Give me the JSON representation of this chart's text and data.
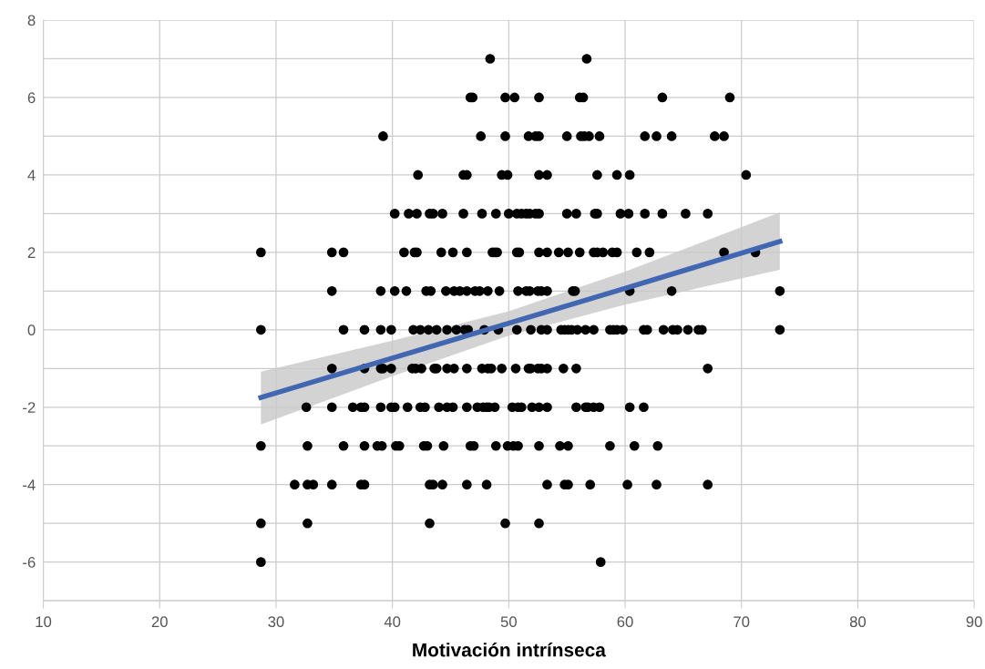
{
  "chart_data": {
    "type": "scatter",
    "xlabel": "Motivación intrínseca",
    "xlim": [
      10,
      90
    ],
    "xticks": [
      10,
      20,
      30,
      40,
      50,
      60,
      70,
      80,
      90
    ],
    "ylim": [
      -7,
      8
    ],
    "yticks": [
      {
        "value": -7,
        "label": null
      },
      -6,
      {
        "value": -5,
        "label": null
      },
      -4,
      {
        "value": -3,
        "label": null
      },
      -2,
      {
        "value": -1,
        "label": null
      },
      0,
      {
        "value": 1,
        "label": null
      },
      2,
      {
        "value": 3,
        "label": null
      },
      4,
      {
        "value": 5,
        "label": null
      },
      6,
      {
        "value": 7,
        "label": null
      },
      8
    ],
    "grid": true,
    "marker": "circle",
    "series": [
      {
        "color": "#000000",
        "x": [
          48.4,
          56.7,
          46.7,
          46.9,
          49.7,
          50.5,
          52.6,
          56.1,
          56.4,
          63.2,
          69.0,
          39.2,
          47.6,
          49.7,
          51.7,
          52.3,
          52.6,
          55.0,
          56.2,
          56.5,
          56.9,
          57.8,
          61.7,
          62.7,
          64.0,
          67.7,
          68.5,
          42.2,
          46.1,
          46.4,
          49.4,
          49.9,
          52.6,
          53.3,
          57.6,
          59.3,
          60.4,
          70.4,
          40.2,
          41.4,
          42.1,
          43.2,
          43.5,
          44.3,
          46.1,
          47.7,
          48.9,
          50.0,
          50.7,
          51.1,
          51.5,
          51.8,
          52.3,
          52.6,
          55.0,
          55.8,
          57.4,
          57.6,
          59.6,
          60.3,
          61.7,
          63.2,
          65.2,
          67.1,
          28.7,
          34.8,
          35.8,
          41.0,
          41.9,
          42.1,
          44.2,
          45.2,
          46.4,
          48.6,
          48.8,
          49.0,
          50.7,
          50.9,
          52.6,
          53.3,
          54.3,
          55.1,
          56.1,
          57.3,
          57.6,
          58.1,
          58.9,
          59.3,
          61.0,
          62.1,
          68.5,
          71.2,
          34.8,
          39.0,
          40.2,
          41.2,
          42.9,
          43.3,
          44.6,
          45.3,
          45.8,
          46.4,
          47.1,
          47.5,
          48.2,
          49.2,
          50.8,
          51.5,
          51.8,
          52.5,
          52.8,
          53.3,
          55.5,
          55.7,
          60.4,
          64.0,
          73.3,
          28.7,
          35.8,
          37.6,
          39.0,
          39.9,
          41.8,
          42.4,
          43.1,
          43.8,
          44.7,
          45.5,
          46.2,
          46.5,
          47.9,
          49.1,
          50.7,
          51.9,
          52.8,
          53.3,
          54.5,
          54.8,
          55.1,
          55.4,
          55.9,
          56.6,
          57.3,
          58.7,
          59.0,
          59.3,
          59.8,
          61.6,
          61.9,
          63.3,
          64.1,
          64.5,
          65.4,
          66.3,
          66.6,
          73.3,
          34.8,
          37.6,
          39.0,
          39.2,
          39.9,
          41.7,
          42.0,
          42.5,
          43.6,
          43.8,
          44.7,
          45.3,
          46.4,
          47.7,
          48.2,
          48.5,
          49.4,
          50.6,
          51.7,
          51.9,
          52.5,
          52.8,
          53.3,
          54.7,
          55.8,
          67.1,
          32.6,
          34.8,
          36.6,
          37.3,
          37.6,
          39.0,
          39.9,
          40.2,
          41.3,
          42.4,
          42.8,
          44.0,
          44.7,
          45.2,
          46.4,
          47.3,
          47.8,
          48.1,
          48.3,
          48.8,
          50.3,
          50.8,
          51.1,
          52.0,
          52.6,
          53.3,
          55.8,
          56.6,
          56.8,
          57.3,
          57.8,
          60.4,
          61.6,
          28.7,
          32.7,
          35.8,
          37.6,
          38.7,
          39.1,
          40.3,
          40.6,
          42.7,
          43.0,
          44.4,
          46.7,
          47.0,
          48.9,
          49.9,
          50.4,
          50.8,
          52.6,
          54.4,
          55.1,
          58.7,
          60.8,
          62.8,
          31.6,
          32.7,
          33.2,
          34.8,
          37.3,
          37.6,
          43.2,
          43.5,
          44.3,
          46.4,
          48.1,
          53.3,
          54.8,
          55.1,
          57.0,
          60.2,
          62.7,
          67.1,
          28.7,
          32.7,
          43.2,
          49.7,
          52.6,
          28.7,
          57.9
        ],
        "values": [
          7,
          7,
          6,
          6,
          6,
          6,
          6,
          6,
          6,
          6,
          6,
          5,
          5,
          5,
          5,
          5,
          5,
          5,
          5,
          5,
          5,
          5,
          5,
          5,
          5,
          5,
          5,
          4,
          4,
          4,
          4,
          4,
          4,
          4,
          4,
          4,
          4,
          4,
          3,
          3,
          3,
          3,
          3,
          3,
          3,
          3,
          3,
          3,
          3,
          3,
          3,
          3,
          3,
          3,
          3,
          3,
          3,
          3,
          3,
          3,
          3,
          3,
          3,
          3,
          2,
          2,
          2,
          2,
          2,
          2,
          2,
          2,
          2,
          2,
          2,
          2,
          2,
          2,
          2,
          2,
          2,
          2,
          2,
          2,
          2,
          2,
          2,
          2,
          2,
          2,
          2,
          2,
          1,
          1,
          1,
          1,
          1,
          1,
          1,
          1,
          1,
          1,
          1,
          1,
          1,
          1,
          1,
          1,
          1,
          1,
          1,
          1,
          1,
          1,
          1,
          1,
          1,
          0,
          0,
          0,
          0,
          0,
          0,
          0,
          0,
          0,
          0,
          0,
          0,
          0,
          0,
          0,
          0,
          0,
          0,
          0,
          0,
          0,
          0,
          0,
          0,
          0,
          0,
          0,
          0,
          0,
          0,
          0,
          0,
          0,
          0,
          0,
          0,
          0,
          0,
          0,
          -1,
          -1,
          -1,
          -1,
          -1,
          -1,
          -1,
          -1,
          -1,
          -1,
          -1,
          -1,
          -1,
          -1,
          -1,
          -1,
          -1,
          -1,
          -1,
          -1,
          -1,
          -1,
          -1,
          -1,
          -1,
          -1,
          -2,
          -2,
          -2,
          -2,
          -2,
          -2,
          -2,
          -2,
          -2,
          -2,
          -2,
          -2,
          -2,
          -2,
          -2,
          -2,
          -2,
          -2,
          -2,
          -2,
          -2,
          -2,
          -2,
          -2,
          -2,
          -2,
          -2,
          -2,
          -2,
          -2,
          -2,
          -2,
          -2,
          -3,
          -3,
          -3,
          -3,
          -3,
          -3,
          -3,
          -3,
          -3,
          -3,
          -3,
          -3,
          -3,
          -3,
          -3,
          -3,
          -3,
          -3,
          -3,
          -3,
          -3,
          -3,
          -3,
          -4,
          -4,
          -4,
          -4,
          -4,
          -4,
          -4,
          -4,
          -4,
          -4,
          -4,
          -4,
          -4,
          -4,
          -4,
          -4,
          -4,
          -4,
          -5,
          -5,
          -5,
          -5,
          -5,
          -6,
          -6
        ]
      },
      {
        "type": "line",
        "color": "#4267b2",
        "marker": "none",
        "x": [
          28.7,
          40,
          50,
          60,
          73.3
        ],
        "values": [
          -1.75,
          -0.73,
          0.17,
          1.07,
          2.28
        ],
        "lower": [
          -2.45,
          -1.2,
          -0.15,
          0.65,
          1.55
        ],
        "upper": [
          -1.08,
          -0.28,
          0.48,
          1.5,
          3.03
        ]
      }
    ]
  }
}
